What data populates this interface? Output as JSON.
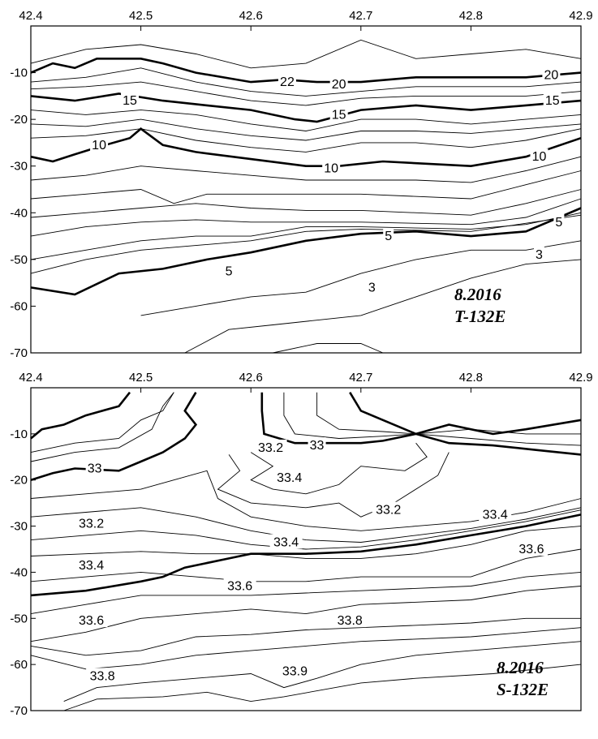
{
  "chart_data": [
    {
      "type": "contour",
      "title_lines": [
        "8.2016",
        "T-132E"
      ],
      "xlim": [
        42.4,
        42.9
      ],
      "ylim": [
        -70,
        0
      ],
      "x_ticks": [
        "42.4",
        "42.5",
        "42.6",
        "42.7",
        "42.8",
        "42.9"
      ],
      "y_ticks": [
        "-10",
        "-20",
        "-30",
        "-40",
        "-50",
        "-60",
        "-70"
      ],
      "contour_labels": [
        {
          "text": "22",
          "x": 42.633,
          "y": -12
        },
        {
          "text": "20",
          "x": 42.68,
          "y": -12.5
        },
        {
          "text": "20",
          "x": 42.873,
          "y": -10.5
        },
        {
          "text": "15",
          "x": 42.49,
          "y": -16
        },
        {
          "text": "15",
          "x": 42.68,
          "y": -19
        },
        {
          "text": "15",
          "x": 42.874,
          "y": -16
        },
        {
          "text": "10",
          "x": 42.462,
          "y": -25.5
        },
        {
          "text": "10",
          "x": 42.673,
          "y": -30.5
        },
        {
          "text": "10",
          "x": 42.862,
          "y": -28
        },
        {
          "text": "5",
          "x": 42.58,
          "y": -52.5
        },
        {
          "text": "5",
          "x": 42.725,
          "y": -45
        },
        {
          "text": "5",
          "x": 42.88,
          "y": -42
        },
        {
          "text": "3",
          "x": 42.71,
          "y": -56
        },
        {
          "text": "3",
          "x": 42.862,
          "y": -49
        }
      ],
      "thick_contours": [
        {
          "level": 20,
          "points": [
            [
              42.4,
              -10
            ],
            [
              42.42,
              -8
            ],
            [
              42.44,
              -9
            ],
            [
              42.46,
              -7
            ],
            [
              42.5,
              -7
            ],
            [
              42.52,
              -8
            ],
            [
              42.55,
              -10
            ],
            [
              42.6,
              -12
            ],
            [
              42.63,
              -11.5
            ],
            [
              42.66,
              -12
            ],
            [
              42.7,
              -12
            ],
            [
              42.75,
              -11
            ],
            [
              42.8,
              -11
            ],
            [
              42.85,
              -11
            ],
            [
              42.9,
              -10
            ]
          ]
        },
        {
          "level": 15,
          "points": [
            [
              42.4,
              -15
            ],
            [
              42.44,
              -16
            ],
            [
              42.48,
              -14.5
            ],
            [
              42.52,
              -16
            ],
            [
              42.56,
              -17
            ],
            [
              42.6,
              -18
            ],
            [
              42.64,
              -20
            ],
            [
              42.66,
              -20.5
            ],
            [
              42.7,
              -18
            ],
            [
              42.75,
              -17
            ],
            [
              42.8,
              -18
            ],
            [
              42.85,
              -17
            ],
            [
              42.9,
              -16
            ]
          ]
        },
        {
          "level": 10,
          "points": [
            [
              42.4,
              -28
            ],
            [
              42.42,
              -29
            ],
            [
              42.44,
              -27.5
            ],
            [
              42.46,
              -26
            ],
            [
              42.49,
              -24
            ],
            [
              42.5,
              -22
            ],
            [
              42.52,
              -25.5
            ],
            [
              42.55,
              -27
            ],
            [
              42.6,
              -28.5
            ],
            [
              42.65,
              -30
            ],
            [
              42.68,
              -30
            ],
            [
              42.72,
              -29
            ],
            [
              42.8,
              -30
            ],
            [
              42.85,
              -28
            ],
            [
              42.9,
              -24
            ]
          ]
        },
        {
          "level": 5,
          "points": [
            [
              42.4,
              -56
            ],
            [
              42.44,
              -57.5
            ],
            [
              42.48,
              -53
            ],
            [
              42.52,
              -52
            ],
            [
              42.56,
              -50
            ],
            [
              42.6,
              -48.5
            ],
            [
              42.65,
              -46
            ],
            [
              42.7,
              -44.5
            ],
            [
              42.75,
              -44
            ],
            [
              42.8,
              -45
            ],
            [
              42.85,
              -44
            ],
            [
              42.9,
              -39
            ]
          ]
        }
      ]
    },
    {
      "type": "contour",
      "title_lines": [
        "8.2016",
        "S-132E"
      ],
      "xlim": [
        42.4,
        42.9
      ],
      "ylim": [
        -70,
        0
      ],
      "x_ticks": [
        "42.4",
        "42.5",
        "42.6",
        "42.7",
        "42.8",
        "42.9"
      ],
      "y_ticks": [
        "-10",
        "-20",
        "-30",
        "-40",
        "-50",
        "-60",
        "-70"
      ],
      "contour_labels": [
        {
          "text": "33",
          "x": 42.458,
          "y": -17.5
        },
        {
          "text": "33",
          "x": 42.66,
          "y": -12.5
        },
        {
          "text": "33.2",
          "x": 42.618,
          "y": -13
        },
        {
          "text": "33.4",
          "x": 42.635,
          "y": -19.5
        },
        {
          "text": "33.2",
          "x": 42.725,
          "y": -26.5
        },
        {
          "text": "33.2",
          "x": 42.455,
          "y": -29.5
        },
        {
          "text": "33.4",
          "x": 42.822,
          "y": -27.5
        },
        {
          "text": "33.4",
          "x": 42.632,
          "y": -33.5
        },
        {
          "text": "33.4",
          "x": 42.455,
          "y": -38.5
        },
        {
          "text": "33.6",
          "x": 42.855,
          "y": -35
        },
        {
          "text": "33.6",
          "x": 42.59,
          "y": -43
        },
        {
          "text": "33.6",
          "x": 42.455,
          "y": -50.5
        },
        {
          "text": "33.8",
          "x": 42.69,
          "y": -50.5
        },
        {
          "text": "33.8",
          "x": 42.465,
          "y": -62.5
        },
        {
          "text": "33.9",
          "x": 42.64,
          "y": -61.5
        }
      ],
      "thick_contours": [
        {
          "level": 33.4,
          "points": [
            [
              42.4,
              -45
            ],
            [
              42.45,
              -44
            ],
            [
              42.5,
              -42
            ],
            [
              42.52,
              -41
            ],
            [
              42.54,
              -39
            ],
            [
              42.58,
              -37
            ],
            [
              42.6,
              -36
            ],
            [
              42.65,
              -36
            ],
            [
              42.7,
              -35.5
            ],
            [
              42.75,
              -34
            ],
            [
              42.8,
              -32
            ],
            [
              42.85,
              -30
            ],
            [
              42.9,
              -27.5
            ]
          ]
        },
        {
          "level": 33,
          "points": [
            [
              42.4,
              -20
            ],
            [
              42.42,
              -18.5
            ],
            [
              42.44,
              -17.5
            ],
            [
              42.48,
              -18
            ],
            [
              42.5,
              -16
            ],
            [
              42.52,
              -14
            ],
            [
              42.54,
              -11
            ],
            [
              42.55,
              -8
            ],
            [
              42.54,
              -5
            ],
            [
              42.55,
              -1
            ]
          ]
        },
        {
          "level": 33,
          "points": [
            [
              42.61,
              -1
            ],
            [
              42.61,
              -5
            ],
            [
              42.612,
              -10
            ],
            [
              42.64,
              -12
            ],
            [
              42.67,
              -12
            ],
            [
              42.7,
              -12
            ],
            [
              42.72,
              -11.5
            ],
            [
              42.75,
              -10
            ],
            [
              42.78,
              -12
            ],
            [
              42.82,
              -12.5
            ],
            [
              42.86,
              -13.5
            ],
            [
              42.9,
              -14.5
            ]
          ]
        },
        {
          "level": 33,
          "points": [
            [
              42.4,
              -11
            ],
            [
              42.41,
              -9
            ],
            [
              42.43,
              -8
            ],
            [
              42.45,
              -6
            ],
            [
              42.48,
              -4
            ],
            [
              42.49,
              -1
            ]
          ]
        },
        {
          "level": 33,
          "points": [
            [
              42.69,
              -1
            ],
            [
              42.7,
              -5
            ],
            [
              42.72,
              -7
            ],
            [
              42.75,
              -10
            ],
            [
              42.78,
              -8
            ],
            [
              42.82,
              -10
            ],
            [
              42.85,
              -9
            ],
            [
              42.9,
              -7
            ]
          ]
        }
      ]
    }
  ]
}
